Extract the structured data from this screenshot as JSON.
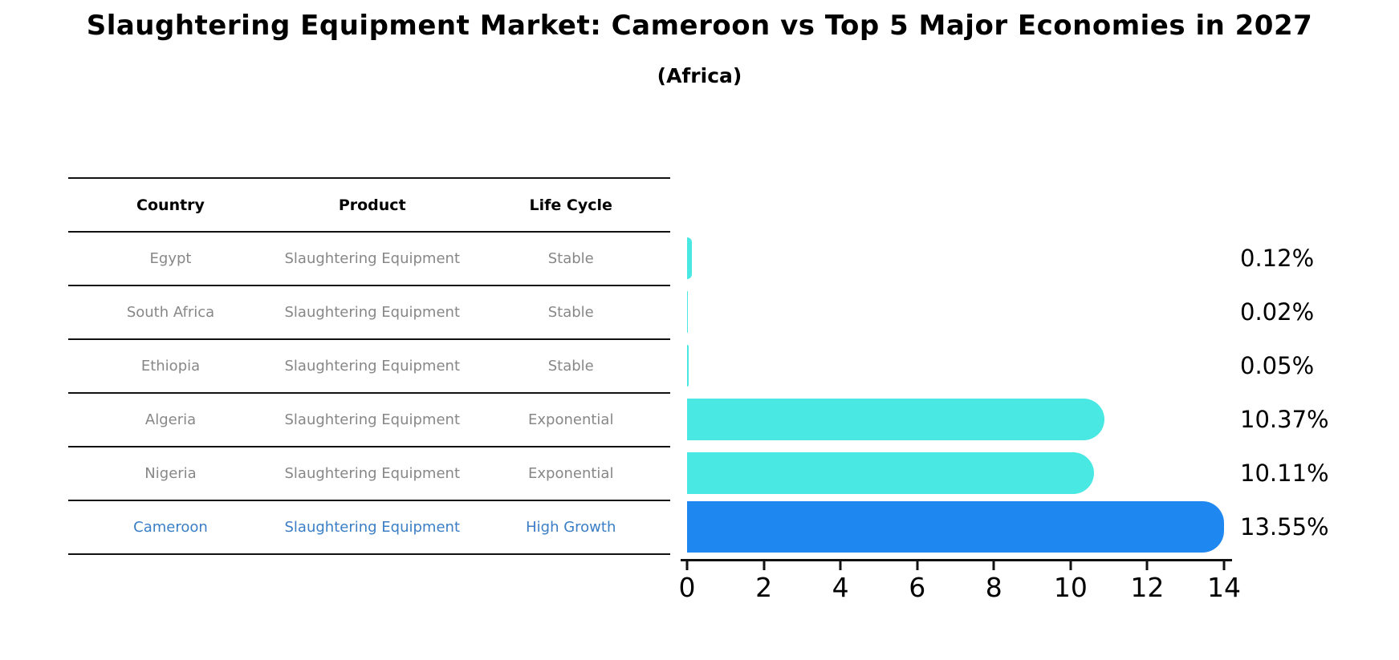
{
  "title": "Slaughtering Equipment Market: Cameroon vs Top 5 Major Economies in 2027",
  "subtitle": "(Africa)",
  "table": {
    "columns": [
      "Country",
      "Product",
      "Life Cycle"
    ],
    "rows": [
      {
        "country": "Egypt",
        "product": "Slaughtering Equipment",
        "life_cycle": "Stable"
      },
      {
        "country": "South Africa",
        "product": "Slaughtering Equipment",
        "life_cycle": "Stable"
      },
      {
        "country": "Ethiopia",
        "product": "Slaughtering Equipment",
        "life_cycle": "Stable"
      },
      {
        "country": "Algeria",
        "product": "Slaughtering Equipment",
        "life_cycle": "Exponential"
      },
      {
        "country": "Nigeria",
        "product": "Slaughtering Equipment",
        "life_cycle": "Exponential"
      },
      {
        "country": "Cameroon",
        "product": "Slaughtering Equipment",
        "life_cycle": "High Growth"
      }
    ]
  },
  "chart_data": {
    "type": "bar",
    "orientation": "horizontal",
    "categories": [
      "Egypt",
      "South Africa",
      "Ethiopia",
      "Algeria",
      "Nigeria",
      "Cameroon"
    ],
    "values": [
      0.12,
      0.02,
      0.05,
      10.37,
      10.11,
      13.55
    ],
    "value_labels": [
      "0.12%",
      "0.02%",
      "0.05%",
      "10.37%",
      "10.11%",
      "13.55%"
    ],
    "xlim": [
      0,
      14
    ],
    "xticks": [
      0,
      2,
      4,
      6,
      8,
      10,
      12,
      14
    ],
    "bar_color": "#49e8e2",
    "highlight_color": "#1e87f0",
    "highlight_index": 5,
    "highlight_text_color": "#3a7ec6",
    "grid": "off",
    "legend": "none"
  }
}
